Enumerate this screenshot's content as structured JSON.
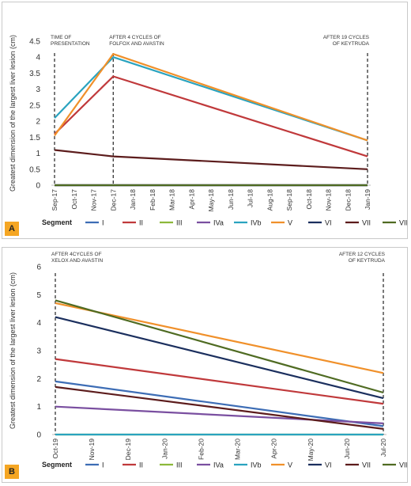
{
  "chart_data": [
    {
      "type": "line",
      "panel_label": "A",
      "ylabel": "Greatest dimension of the largest liver lesion (cm)",
      "ylim": [
        0,
        4.5
      ],
      "yticks": [
        "0",
        "0.5",
        "1",
        "1.5",
        "2",
        "2.5",
        "3",
        "3.5",
        "4",
        "4.5"
      ],
      "categories": [
        "Sep-17",
        "Oct-17",
        "Nov-17",
        "Dec-17",
        "Jan-18",
        "Feb-18",
        "Mar-18",
        "Apr-18",
        "May-18",
        "Jun-18",
        "Jul-18",
        "Aug-18",
        "Sep-18",
        "Oct-18",
        "Nov-18",
        "Dec-18",
        "Jan-19"
      ],
      "annotations": [
        {
          "at_index": 0,
          "lines": [
            "TIME OF",
            "PRESENTATION"
          ]
        },
        {
          "at_index": 3,
          "lines": [
            "AFTER 4 CYCLES OF",
            "FOLFOX AND AVASTIN"
          ]
        },
        {
          "at_index": 16,
          "lines": [
            "AFTER 19  CYCLES",
            "OF KEYTRUDA"
          ]
        }
      ],
      "legend_title": "Segment",
      "series": [
        {
          "name": "I",
          "color": "#3d6db5",
          "points": [
            [
              0,
              0
            ],
            [
              3,
              0
            ],
            [
              16,
              0
            ]
          ]
        },
        {
          "name": "II",
          "color": "#c0393b",
          "points": [
            [
              0,
              1.6
            ],
            [
              3,
              3.4
            ],
            [
              16,
              0.9
            ]
          ]
        },
        {
          "name": "III",
          "color": "#8cb83a",
          "points": [
            [
              0,
              0
            ],
            [
              3,
              0
            ],
            [
              16,
              0
            ]
          ]
        },
        {
          "name": "IVa",
          "color": "#7a4fa0",
          "points": [
            [
              0,
              0
            ],
            [
              3,
              0
            ],
            [
              16,
              0
            ]
          ]
        },
        {
          "name": "IVb",
          "color": "#2aa3bf",
          "points": [
            [
              0,
              2.1
            ],
            [
              3,
              4.0
            ],
            [
              16,
              1.4
            ]
          ]
        },
        {
          "name": "V",
          "color": "#f0902a",
          "points": [
            [
              0,
              1.55
            ],
            [
              3,
              4.1
            ],
            [
              16,
              1.4
            ]
          ]
        },
        {
          "name": "VI",
          "color": "#1b2f5e",
          "points": [
            [
              0,
              0
            ],
            [
              3,
              0
            ],
            [
              16,
              0
            ]
          ]
        },
        {
          "name": "VII",
          "color": "#5c1c1c",
          "points": [
            [
              0,
              1.1
            ],
            [
              3,
              0.9
            ],
            [
              16,
              0.5
            ]
          ]
        },
        {
          "name": "VIII",
          "color": "#4f6b22",
          "points": [
            [
              0,
              0
            ],
            [
              3,
              0
            ],
            [
              16,
              0
            ]
          ]
        }
      ]
    },
    {
      "type": "line",
      "panel_label": "B",
      "ylabel": "Greatest dimension of the largest liver lesion  (cm)",
      "ylim": [
        0,
        6
      ],
      "yticks": [
        "0",
        "1",
        "2",
        "3",
        "4",
        "5",
        "6"
      ],
      "categories": [
        "Oct-19",
        "Nov-19",
        "Dec-19",
        "Jan-20",
        "Feb-20",
        "Mar-20",
        "Apr-20",
        "May-20",
        "Jun-20",
        "Jul-20"
      ],
      "annotations": [
        {
          "at_index": 0,
          "lines": [
            "AFTER 4CYCLES OF",
            "XELOX AND AVASTIN"
          ]
        },
        {
          "at_index": 9,
          "lines": [
            "AFTER 12  CYCLES",
            "OF KEYTRUDA"
          ]
        }
      ],
      "legend_title": "Segment",
      "series": [
        {
          "name": "I",
          "color": "#3d6db5",
          "points": [
            [
              0,
              1.9
            ],
            [
              9,
              0.3
            ]
          ]
        },
        {
          "name": "II",
          "color": "#c0393b",
          "points": [
            [
              0,
              2.7
            ],
            [
              9,
              1.1
            ]
          ]
        },
        {
          "name": "III",
          "color": "#8cb83a",
          "points": [
            [
              0,
              0
            ],
            [
              9,
              0
            ]
          ]
        },
        {
          "name": "IVa",
          "color": "#7a4fa0",
          "points": [
            [
              0,
              1.0
            ],
            [
              9,
              0.4
            ]
          ]
        },
        {
          "name": "IVb",
          "color": "#2aa3bf",
          "points": [
            [
              0,
              0
            ],
            [
              9,
              0
            ]
          ]
        },
        {
          "name": "V",
          "color": "#f0902a",
          "points": [
            [
              0,
              4.7
            ],
            [
              9,
              2.2
            ]
          ]
        },
        {
          "name": "VI",
          "color": "#1b2f5e",
          "points": [
            [
              0,
              4.2
            ],
            [
              9,
              1.3
            ]
          ]
        },
        {
          "name": "VII",
          "color": "#5c1c1c",
          "points": [
            [
              0,
              1.7
            ],
            [
              9,
              0.2
            ]
          ]
        },
        {
          "name": "VIII",
          "color": "#4f6b22",
          "points": [
            [
              0,
              4.8
            ],
            [
              9,
              1.5
            ]
          ]
        }
      ]
    }
  ]
}
